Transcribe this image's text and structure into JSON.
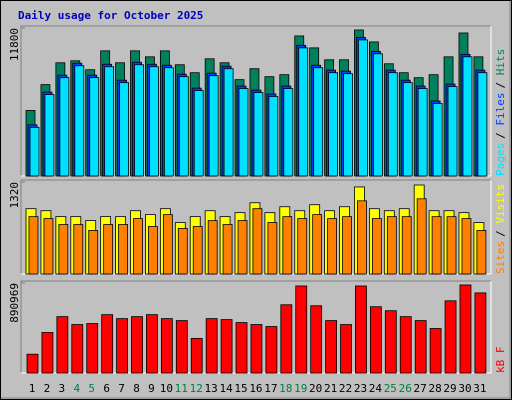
{
  "title": "Daily usage for October 2025",
  "legend_separator": "/",
  "chart_data": [
    {
      "type": "bar",
      "series": [
        {
          "name": "Hits",
          "color": "#00805c",
          "values": [
            5227,
            7286,
            9028,
            9187,
            8474,
            9979,
            9028,
            9979,
            9503,
            9979,
            8870,
            8236,
            9345,
            9028,
            7682,
            8553,
            7919,
            8078,
            11166,
            10216,
            9266,
            9266,
            11642,
            10691,
            8949,
            8236,
            7840,
            8078,
            9503,
            11404,
            9503
          ]
        },
        {
          "name": "Files",
          "color": "#0040ff",
          "values": [
            4080,
            6690,
            8040,
            8990,
            8040,
            8910,
            7640,
            9070,
            8910,
            8830,
            8120,
            7010,
            8200,
            8750,
            7170,
            6850,
            6540,
            7170,
            10420,
            8830,
            8440,
            8360,
            11050,
            9940,
            8440,
            7640,
            7170,
            5980,
            7330,
            9700,
            8440
          ]
        },
        {
          "name": "Pages",
          "color": "#00e0ff",
          "values": [
            3881,
            6494,
            7840,
            8790,
            7840,
            8712,
            7444,
            8870,
            8712,
            8632,
            7919,
            6811,
            7998,
            8553,
            6969,
            6652,
            6336,
            6969,
            10216,
            8632,
            8236,
            8157,
            10850,
            9741,
            8236,
            7444,
            6969,
            5781,
            7128,
            9503,
            8236
          ]
        }
      ],
      "ylim": [
        0,
        11800
      ],
      "yticks": [
        11800
      ]
    },
    {
      "type": "bar",
      "series": [
        {
          "name": "Visits",
          "color": "#ffff00",
          "values": [
            937,
            908,
            823,
            823,
            766,
            823,
            823,
            908,
            852,
            937,
            738,
            823,
            908,
            823,
            880,
            1022,
            880,
            965,
            908,
            994,
            908,
            965,
            1249,
            937,
            908,
            937,
            1277,
            908,
            908,
            880,
            738
          ]
        },
        {
          "name": "Sites",
          "color": "#ff8000",
          "values": [
            823,
            795,
            710,
            710,
            625,
            710,
            710,
            795,
            681,
            852,
            653,
            681,
            766,
            710,
            766,
            937,
            738,
            823,
            795,
            852,
            795,
            823,
            1050,
            795,
            823,
            823,
            1079,
            823,
            823,
            795,
            625
          ]
        }
      ],
      "ylim": [
        0,
        1320
      ],
      "yticks": [
        1320
      ]
    },
    {
      "type": "bar",
      "series": [
        {
          "name": "kB F",
          "color": "#ff0000",
          "values": [
            186026,
            401425,
            558079,
            479752,
            489543,
            577661,
            538497,
            558079,
            577661,
            538497,
            518915,
            342686,
            538497,
            528706,
            499334,
            479752,
            460170,
            675579,
            861600,
            665788,
            518915,
            479752,
            861600,
            655997,
            616833,
            558079,
            518915,
            440597,
            714743,
            871391,
            793076
          ]
        }
      ],
      "ylim": [
        0,
        890969
      ],
      "yticks": [
        890969
      ],
      "categories": [
        "1",
        "2",
        "3",
        "4",
        "5",
        "6",
        "7",
        "8",
        "9",
        "10",
        "11",
        "12",
        "13",
        "14",
        "15",
        "16",
        "17",
        "18",
        "19",
        "20",
        "21",
        "22",
        "23",
        "24",
        "25",
        "26",
        "27",
        "28",
        "29",
        "30",
        "31"
      ],
      "category_colors": [
        "#000000",
        "#000000",
        "#000000",
        "#008040",
        "#008040",
        "#000000",
        "#000000",
        "#000000",
        "#000000",
        "#000000",
        "#008040",
        "#008040",
        "#000000",
        "#000000",
        "#000000",
        "#000000",
        "#000000",
        "#008040",
        "#008040",
        "#000000",
        "#000000",
        "#000000",
        "#000000",
        "#000000",
        "#008040",
        "#008040",
        "#000000",
        "#000000",
        "#000000",
        "#000000",
        "#000000"
      ]
    }
  ]
}
